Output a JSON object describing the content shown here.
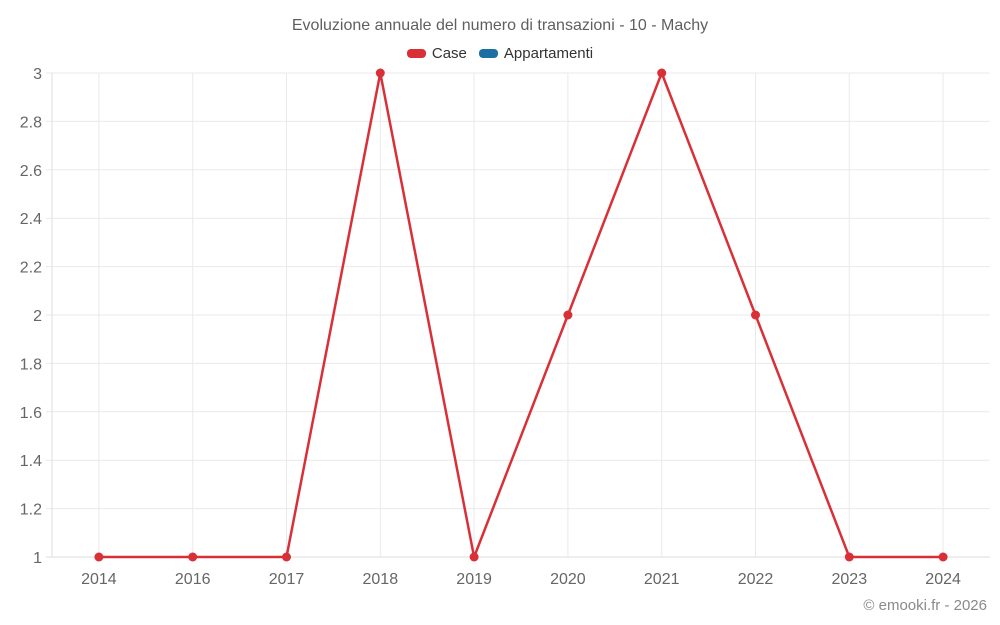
{
  "title": "Evoluzione annuale del numero di transazioni - 10 - Machy",
  "copyright": "© emooki.fr - 2026",
  "chart_data": {
    "type": "line",
    "title": "Evoluzione annuale del numero di transazioni - 10 - Machy",
    "categories": [
      "2014",
      "2016",
      "2017",
      "2018",
      "2019",
      "2020",
      "2021",
      "2022",
      "2023",
      "2024"
    ],
    "series": [
      {
        "name": "Case",
        "color": "#d93038",
        "values": [
          1,
          1,
          1,
          3,
          1,
          2,
          3,
          2,
          1,
          1
        ]
      },
      {
        "name": "Appartamenti",
        "color": "#1c6ea3",
        "values": []
      }
    ],
    "xlabel": "",
    "ylabel": "",
    "ylim": [
      1,
      3
    ],
    "y_ticks": [
      1,
      1.2,
      1.4,
      1.6,
      1.8,
      2,
      2.2,
      2.4,
      2.6,
      2.8,
      3
    ],
    "y_tick_labels": [
      "1",
      "1.2",
      "1.4",
      "1.6",
      "1.8",
      "2",
      "2.2",
      "2.4",
      "2.6",
      "2.8",
      "3"
    ],
    "grid": true,
    "legend_position": "top"
  }
}
